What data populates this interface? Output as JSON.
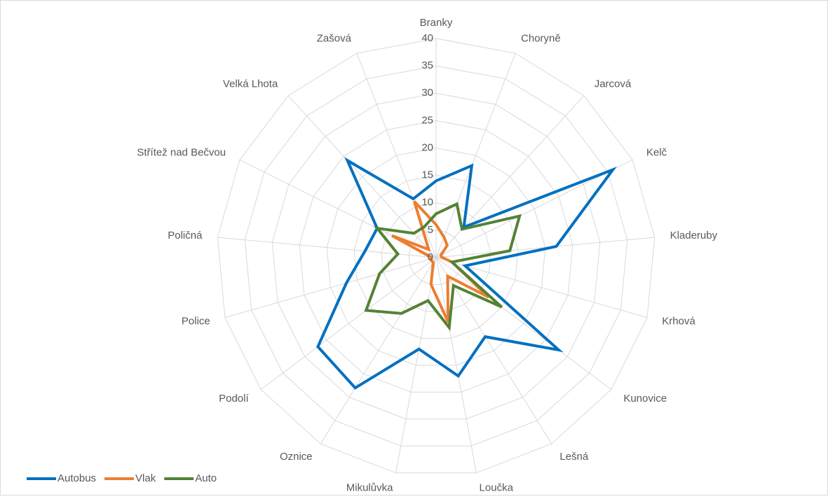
{
  "chart_data": {
    "type": "radar",
    "categories": [
      "Branky",
      "Choryně",
      "Jarcová",
      "Kelč",
      "Kladeruby",
      "Krhová",
      "Kunovice",
      "Lešná",
      "Loučka",
      "Mikulůvka",
      "Oznice",
      "Podolí",
      "Police",
      "Poličná",
      "Střítež nad Bečvou",
      "Velká Lhota",
      "Zašová"
    ],
    "series": [
      {
        "name": "Autobus",
        "color": "#0070c0",
        "values": [
          14,
          18,
          7.5,
          36,
          22,
          5.5,
          28,
          17,
          22,
          17,
          28,
          27,
          17,
          13,
          12,
          24,
          11.5
        ]
      },
      {
        "name": "Vlak",
        "color": "#ed7d31",
        "values": [
          6,
          4,
          3,
          1,
          1,
          3,
          12,
          4,
          12,
          5,
          1,
          1,
          1,
          1,
          9,
          2,
          11
        ]
      },
      {
        "name": "Auto",
        "color": "#548235",
        "values": [
          8,
          10.5,
          7,
          17,
          13.5,
          3,
          15,
          6,
          13,
          8,
          12,
          16,
          10.7,
          7,
          12,
          6,
          6
        ]
      }
    ],
    "ylim": [
      0,
      40
    ],
    "yticks": [
      0,
      5,
      10,
      15,
      20,
      25,
      30,
      35,
      40
    ],
    "grid": true,
    "legend": "bottom-left"
  }
}
